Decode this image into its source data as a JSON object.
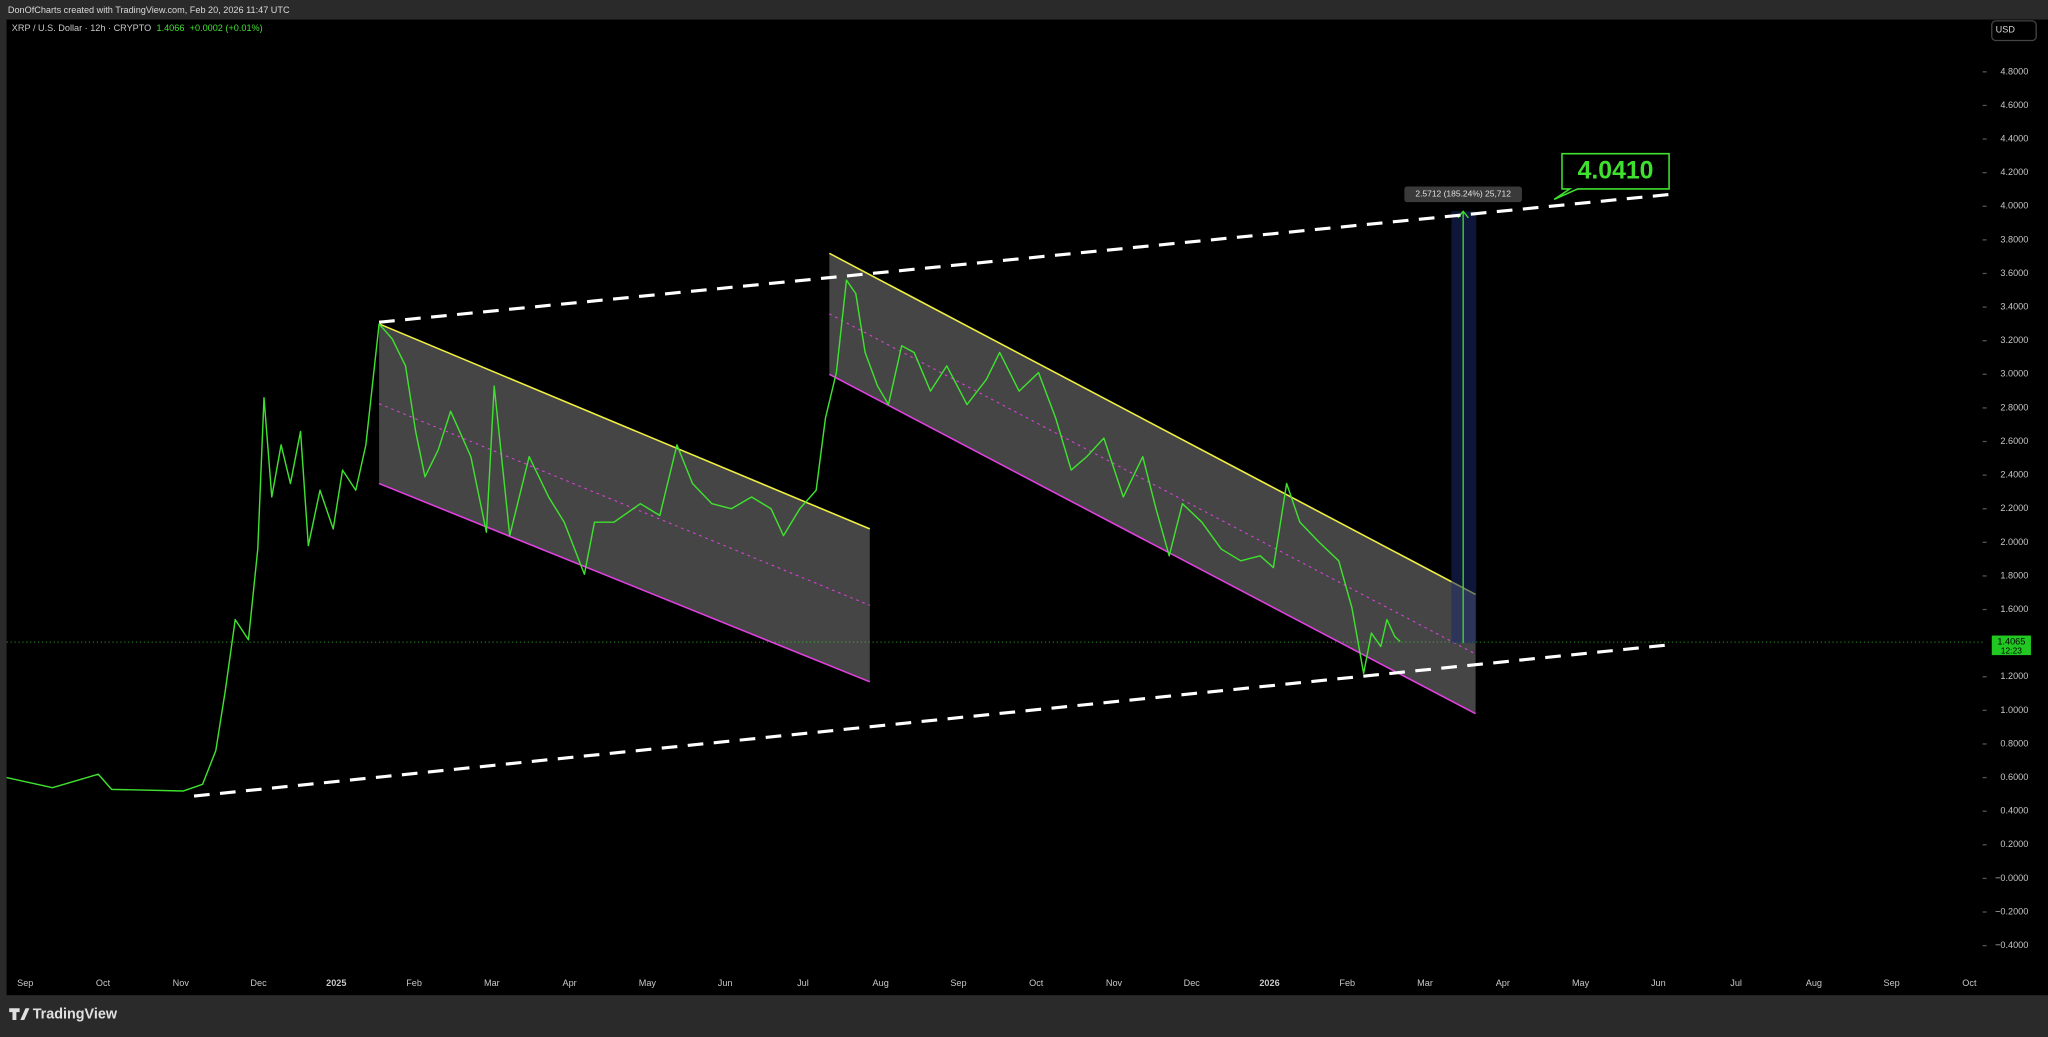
{
  "top_bar": "DonOfCharts created with TradingView.com, Feb 20, 2026 11:47 UTC",
  "legend": {
    "title": "XRP / U.S. Dollar · 12h · CRYPTO",
    "price": "1.4066",
    "change": "+0.0002 (+0.01%)"
  },
  "currency_button": "USD",
  "brand": "TradingView",
  "chart_data": {
    "type": "line",
    "xlim": [
      -0.24,
      25.17
    ],
    "ylim": [
      -0.563,
      5.111
    ],
    "xticks": [
      {
        "value": 0,
        "label": "Sep"
      },
      {
        "value": 1,
        "label": "Oct"
      },
      {
        "value": 2,
        "label": "Nov"
      },
      {
        "value": 3,
        "label": "Dec"
      },
      {
        "value": 4,
        "label": "2025"
      },
      {
        "value": 5,
        "label": "Feb"
      },
      {
        "value": 6,
        "label": "Mar"
      },
      {
        "value": 7,
        "label": "Apr"
      },
      {
        "value": 8,
        "label": "May"
      },
      {
        "value": 9,
        "label": "Jun"
      },
      {
        "value": 10,
        "label": "Jul"
      },
      {
        "value": 11,
        "label": "Aug"
      },
      {
        "value": 12,
        "label": "Sep"
      },
      {
        "value": 13,
        "label": "Oct"
      },
      {
        "value": 14,
        "label": "Nov"
      },
      {
        "value": 15,
        "label": "Dec"
      },
      {
        "value": 16,
        "label": "2026"
      },
      {
        "value": 17,
        "label": "Feb"
      },
      {
        "value": 18,
        "label": "Mar"
      },
      {
        "value": 19,
        "label": "Apr"
      },
      {
        "value": 20,
        "label": "May"
      },
      {
        "value": 21,
        "label": "Jun"
      },
      {
        "value": 22,
        "label": "Jul"
      },
      {
        "value": 23,
        "label": "Aug"
      },
      {
        "value": 24,
        "label": "Sep"
      },
      {
        "value": 25,
        "label": "Oct"
      }
    ],
    "yticks": [
      {
        "value": 4.8,
        "label": "4.8000"
      },
      {
        "value": 4.6,
        "label": "4.6000"
      },
      {
        "value": 4.4,
        "label": "4.4000"
      },
      {
        "value": 4.2,
        "label": "4.2000"
      },
      {
        "value": 4.0,
        "label": "4.0000"
      },
      {
        "value": 3.8,
        "label": "3.8000"
      },
      {
        "value": 3.6,
        "label": "3.6000"
      },
      {
        "value": 3.4,
        "label": "3.4000"
      },
      {
        "value": 3.2,
        "label": "3.2000"
      },
      {
        "value": 3.0,
        "label": "3.0000"
      },
      {
        "value": 2.8,
        "label": "2.8000"
      },
      {
        "value": 2.6,
        "label": "2.6000"
      },
      {
        "value": 2.4,
        "label": "2.4000"
      },
      {
        "value": 2.2,
        "label": "2.2000"
      },
      {
        "value": 2.0,
        "label": "2.0000"
      },
      {
        "value": 1.8,
        "label": "1.8000"
      },
      {
        "value": 1.6,
        "label": "1.6000"
      },
      {
        "value": 1.2,
        "label": "1.2000"
      },
      {
        "value": 1.0,
        "label": "1.0000"
      },
      {
        "value": 0.8,
        "label": "0.8000"
      },
      {
        "value": 0.6,
        "label": "0.6000"
      },
      {
        "value": 0.4,
        "label": "0.4000"
      },
      {
        "value": 0.2,
        "label": "0.2000"
      },
      {
        "value": 0,
        "label": "−0.0000"
      },
      {
        "value": -0.2,
        "label": "−0.2000"
      },
      {
        "value": -0.4,
        "label": "−0.4000"
      }
    ],
    "series": [
      {
        "name": "XRP / U.S. Dollar",
        "color": "#3fe02f",
        "x": [
          -0.24,
          0.35,
          0.94,
          1.11,
          2.03,
          2.28,
          2.45,
          2.57,
          2.7,
          2.87,
          2.99,
          3.07,
          3.17,
          3.29,
          3.41,
          3.54,
          3.64,
          3.79,
          3.96,
          4.08,
          4.25,
          4.38,
          4.55,
          4.72,
          4.89,
          5.02,
          5.14,
          5.31,
          5.47,
          5.73,
          5.93,
          6.03,
          6.23,
          6.48,
          6.73,
          6.93,
          7.19,
          7.32,
          7.57,
          7.91,
          8.16,
          8.38,
          8.58,
          8.83,
          9.08,
          9.34,
          9.59,
          9.75,
          9.96,
          10.17,
          10.29,
          10.43,
          10.56,
          10.68,
          10.8,
          10.96,
          11.1,
          11.27,
          11.43,
          11.64,
          11.85,
          12.11,
          12.36,
          12.53,
          12.78,
          13.03,
          13.25,
          13.45,
          13.65,
          13.87,
          14.12,
          14.37,
          14.54,
          14.71,
          14.88,
          15.13,
          15.38,
          15.63,
          15.88,
          16.05,
          16.22,
          16.39,
          16.64,
          16.89,
          17.06,
          17.21,
          17.31,
          17.43,
          17.51,
          17.61,
          17.68
        ],
        "values": [
          0.6,
          0.54,
          0.62,
          0.53,
          0.52,
          0.56,
          0.76,
          1.11,
          1.54,
          1.42,
          1.96,
          2.86,
          2.27,
          2.58,
          2.35,
          2.66,
          1.98,
          2.31,
          2.08,
          2.43,
          2.31,
          2.58,
          3.3,
          3.21,
          3.05,
          2.66,
          2.39,
          2.55,
          2.78,
          2.51,
          2.06,
          2.93,
          2.04,
          2.51,
          2.27,
          2.12,
          1.81,
          2.12,
          2.12,
          2.23,
          2.16,
          2.58,
          2.35,
          2.23,
          2.2,
          2.27,
          2.2,
          2.04,
          2.2,
          2.31,
          2.74,
          3.01,
          3.56,
          3.48,
          3.13,
          2.93,
          2.82,
          3.17,
          3.13,
          2.9,
          3.05,
          2.82,
          2.97,
          3.13,
          2.9,
          3.01,
          2.74,
          2.43,
          2.51,
          2.62,
          2.27,
          2.51,
          2.2,
          1.92,
          2.23,
          2.12,
          1.96,
          1.89,
          1.92,
          1.85,
          2.35,
          2.12,
          2.0,
          1.89,
          1.61,
          1.22,
          1.46,
          1.38,
          1.54,
          1.44,
          1.41
        ]
      }
    ],
    "last_price": {
      "value": 1.4065,
      "label": "1.4065",
      "countdown": "12:23"
    },
    "channels": [
      {
        "x": [
          4.55,
          10.86
        ],
        "top": [
          3.3,
          2.08
        ],
        "bottom": [
          2.35,
          1.17
        ]
      },
      {
        "x": [
          10.34,
          18.65
        ],
        "top": [
          3.72,
          1.69
        ],
        "bottom": [
          3.0,
          0.98
        ]
      }
    ],
    "trendlines": [
      {
        "x": [
          4.55,
          21.14
        ],
        "y": [
          3.31,
          4.07
        ]
      },
      {
        "x": [
          2.17,
          21.14
        ],
        "y": [
          0.49,
          1.39
        ]
      }
    ],
    "measure": {
      "x": 18.49,
      "from": 1.4,
      "to": 3.97,
      "label": "2.5712 (185.24%) 25,712"
    },
    "target": {
      "x": 19.66,
      "value": 4.041,
      "label": "4.0410"
    }
  }
}
